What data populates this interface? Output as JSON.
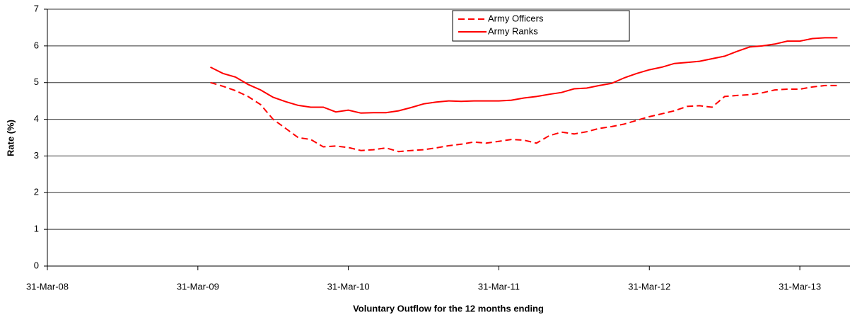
{
  "chart_data": {
    "type": "line",
    "x_label": "Voluntary Outflow for the 12 months ending",
    "y_label": "Rate (%)",
    "x": [
      13,
      14,
      15,
      16,
      17,
      18,
      19,
      20,
      21,
      22,
      23,
      24,
      25,
      26,
      27,
      28,
      29,
      30,
      31,
      32,
      33,
      34,
      35,
      36,
      37,
      38,
      39,
      40,
      41,
      42,
      43,
      44,
      45,
      46,
      47,
      48,
      49,
      50,
      51,
      52,
      53,
      54,
      55,
      56,
      57,
      58,
      59,
      60,
      61,
      62,
      63
    ],
    "xlim": [
      0,
      64
    ],
    "xticks": [
      {
        "value": 0,
        "label": "31-Mar-08"
      },
      {
        "value": 12,
        "label": "31-Mar-09"
      },
      {
        "value": 24,
        "label": "31-Mar-10"
      },
      {
        "value": 36,
        "label": "31-Mar-11"
      },
      {
        "value": 48,
        "label": "31-Mar-12"
      },
      {
        "value": 60,
        "label": "31-Mar-13"
      }
    ],
    "ylim": [
      0,
      7
    ],
    "yticks": [
      0,
      1,
      2,
      3,
      4,
      5,
      6,
      7
    ],
    "grid": true,
    "legend_position": "top",
    "series": [
      {
        "name": "Army Officers",
        "color": "#ff0000",
        "line_style": "dashed",
        "values": [
          5.0,
          4.9,
          4.78,
          4.62,
          4.4,
          4.0,
          3.75,
          3.5,
          3.45,
          3.25,
          3.27,
          3.23,
          3.15,
          3.17,
          3.22,
          3.12,
          3.15,
          3.17,
          3.22,
          3.28,
          3.32,
          3.38,
          3.35,
          3.4,
          3.45,
          3.43,
          3.35,
          3.55,
          3.65,
          3.6,
          3.66,
          3.75,
          3.8,
          3.87,
          3.97,
          4.07,
          4.15,
          4.23,
          4.35,
          4.37,
          4.33,
          4.62,
          4.65,
          4.67,
          4.72,
          4.8,
          4.82,
          4.82,
          4.88,
          4.92,
          4.92
        ]
      },
      {
        "name": "Army Ranks",
        "color": "#ff0000",
        "line_style": "solid",
        "values": [
          5.42,
          5.25,
          5.15,
          4.95,
          4.8,
          4.6,
          4.48,
          4.38,
          4.33,
          4.33,
          4.2,
          4.25,
          4.17,
          4.18,
          4.18,
          4.23,
          4.32,
          4.42,
          4.47,
          4.5,
          4.49,
          4.5,
          4.5,
          4.5,
          4.52,
          4.58,
          4.62,
          4.68,
          4.73,
          4.83,
          4.85,
          4.92,
          4.98,
          5.13,
          5.25,
          5.35,
          5.42,
          5.52,
          5.55,
          5.58,
          5.65,
          5.72,
          5.85,
          5.97,
          6.0,
          6.05,
          6.13,
          6.13,
          6.2,
          6.22,
          6.22
        ]
      }
    ]
  }
}
